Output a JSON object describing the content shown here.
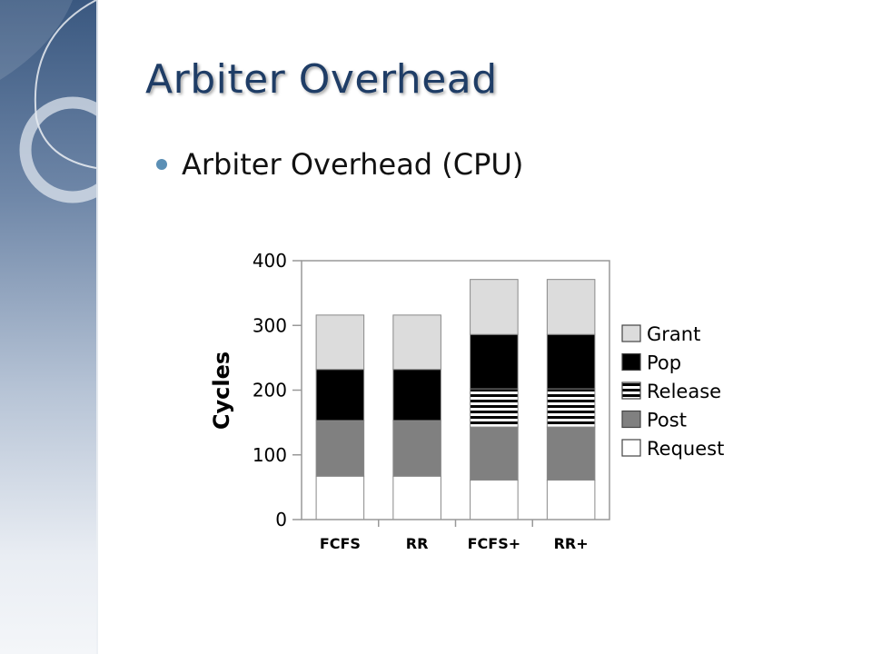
{
  "slide": {
    "title": "Arbiter Overhead",
    "bullet": "Arbiter Overhead (CPU)"
  },
  "colors": {
    "title": "#1f3d66",
    "bullet_dot": "#5b8fb5"
  },
  "chart_data": {
    "type": "bar",
    "stacked": true,
    "title": "",
    "xlabel": "",
    "ylabel": "Cycles",
    "ylim": [
      0,
      400
    ],
    "yticks": [
      0,
      100,
      200,
      300,
      400
    ],
    "categories": [
      "FCFS",
      "RR",
      "FCFS+",
      "RR+"
    ],
    "series": [
      {
        "name": "Request",
        "values": [
          67,
          67,
          61,
          61
        ],
        "color": "#ffffff",
        "pattern": "solid"
      },
      {
        "name": "Post",
        "values": [
          86,
          86,
          82,
          82
        ],
        "color": "#808080",
        "pattern": "solid"
      },
      {
        "name": "Release",
        "values": [
          0,
          0,
          59,
          59
        ],
        "color": "#ffffff",
        "pattern": "horizontal-stripes"
      },
      {
        "name": "Pop",
        "values": [
          79,
          79,
          84,
          84
        ],
        "color": "#000000",
        "pattern": "solid"
      },
      {
        "name": "Grant",
        "values": [
          84,
          84,
          85,
          85
        ],
        "color": "#dcdcdc",
        "pattern": "solid"
      }
    ],
    "legend_order": [
      "Grant",
      "Pop",
      "Release",
      "Post",
      "Request"
    ],
    "legend_position": "right",
    "grid": false
  }
}
